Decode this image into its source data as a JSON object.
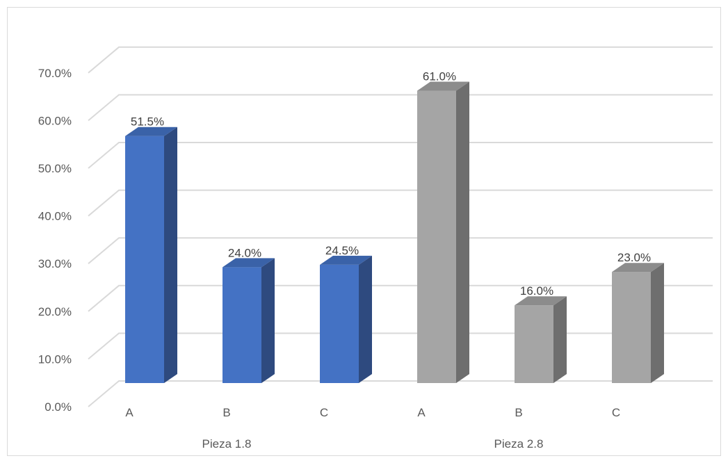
{
  "chart_data": {
    "type": "bar",
    "style": "3d-clustered-column",
    "groups": [
      {
        "name": "Pieza 1.8",
        "color": "#4472c4",
        "side_color": "#2e4a7f",
        "top_color": "#3a62a8",
        "bars": [
          {
            "category": "A",
            "value": 51.5,
            "label": "51.5%"
          },
          {
            "category": "B",
            "value": 24.0,
            "label": "24.0%"
          },
          {
            "category": "C",
            "value": 24.5,
            "label": "24.5%"
          }
        ]
      },
      {
        "name": "Pieza 2.8",
        "color": "#a5a5a5",
        "side_color": "#6e6e6e",
        "top_color": "#8c8c8c",
        "bars": [
          {
            "category": "A",
            "value": 61.0,
            "label": "61.0%"
          },
          {
            "category": "B",
            "value": 16.0,
            "label": "16.0%"
          },
          {
            "category": "C",
            "value": 23.0,
            "label": "23.0%"
          }
        ]
      }
    ],
    "y_ticks": [
      "0.0%",
      "10.0%",
      "20.0%",
      "30.0%",
      "40.0%",
      "50.0%",
      "60.0%",
      "70.0%"
    ],
    "ylim": [
      0,
      70
    ],
    "grid": true,
    "legend": "none",
    "title": "",
    "xlabel": "",
    "ylabel": ""
  }
}
